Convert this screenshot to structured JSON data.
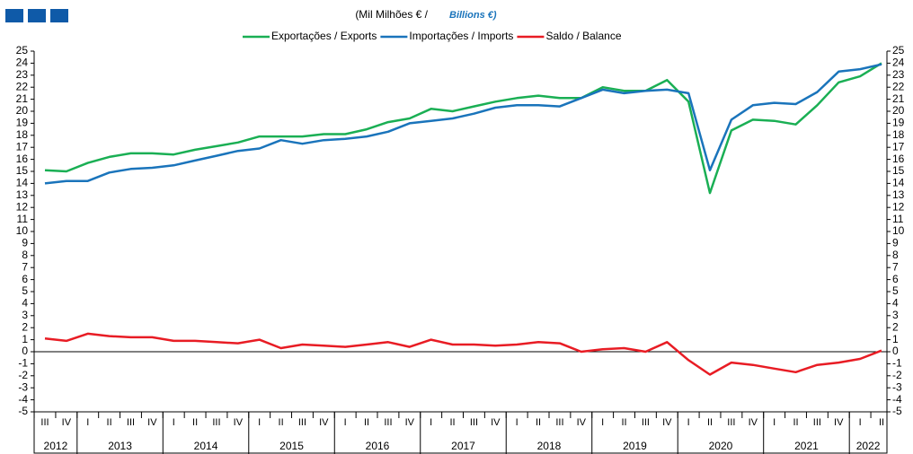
{
  "chart_data": {
    "type": "line",
    "subtitle_pt": "(Mil Milhões € /",
    "subtitle_en": "Billions €)",
    "categories": [
      "III",
      "IV",
      "I",
      "II",
      "III",
      "IV",
      "I",
      "II",
      "III",
      "IV",
      "I",
      "II",
      "III",
      "IV",
      "I",
      "II",
      "III",
      "IV",
      "I",
      "II",
      "III",
      "IV",
      "I",
      "II",
      "III",
      "IV",
      "I",
      "II",
      "III",
      "IV",
      "I",
      "II",
      "III",
      "IV",
      "I",
      "II",
      "III",
      "IV",
      "I",
      "II"
    ],
    "years": [
      "2012",
      "2013",
      "2014",
      "2015",
      "2016",
      "2017",
      "2018",
      "2019",
      "2020",
      "2021",
      "2022"
    ],
    "ylim": [
      -5,
      25
    ],
    "yticks": [
      -5,
      -4,
      -3,
      -2,
      -1,
      0,
      1,
      2,
      3,
      4,
      5,
      6,
      7,
      8,
      9,
      10,
      11,
      12,
      13,
      14,
      15,
      16,
      17,
      18,
      19,
      20,
      21,
      22,
      23,
      24,
      25
    ],
    "series": [
      {
        "name": "Exportações / Exports",
        "color": "#1aaf54",
        "values": [
          15.1,
          15.0,
          15.7,
          16.2,
          16.5,
          16.5,
          16.4,
          16.8,
          17.1,
          17.4,
          17.9,
          17.9,
          17.9,
          18.1,
          18.1,
          18.5,
          19.1,
          19.4,
          20.2,
          20.0,
          20.4,
          20.8,
          21.1,
          21.3,
          21.1,
          21.1,
          22.0,
          21.7,
          21.7,
          22.6,
          20.8,
          13.2,
          18.4,
          19.3,
          19.2,
          18.9,
          20.5,
          22.4,
          22.9,
          24.0
        ]
      },
      {
        "name": "Importações / Imports",
        "color": "#1a74bb",
        "values": [
          14.0,
          14.2,
          14.2,
          14.9,
          15.2,
          15.3,
          15.5,
          15.9,
          16.3,
          16.7,
          16.9,
          17.6,
          17.3,
          17.6,
          17.7,
          17.9,
          18.3,
          19.0,
          19.2,
          19.4,
          19.8,
          20.3,
          20.5,
          20.5,
          20.4,
          21.1,
          21.8,
          21.5,
          21.7,
          21.8,
          21.5,
          15.1,
          19.3,
          20.5,
          20.7,
          20.6,
          21.6,
          23.3,
          23.5,
          23.9
        ]
      },
      {
        "name": "Saldo / Balance",
        "color": "#e81c24",
        "values": [
          1.1,
          0.9,
          1.5,
          1.3,
          1.2,
          1.2,
          0.9,
          0.9,
          0.8,
          0.7,
          1.0,
          0.3,
          0.6,
          0.5,
          0.4,
          0.6,
          0.8,
          0.4,
          1.0,
          0.6,
          0.6,
          0.5,
          0.6,
          0.8,
          0.7,
          0.0,
          0.2,
          0.3,
          0.0,
          0.8,
          -0.7,
          -1.9,
          -0.9,
          -1.1,
          -1.4,
          -1.7,
          -1.1,
          -0.9,
          -0.6,
          0.1
        ]
      }
    ]
  }
}
